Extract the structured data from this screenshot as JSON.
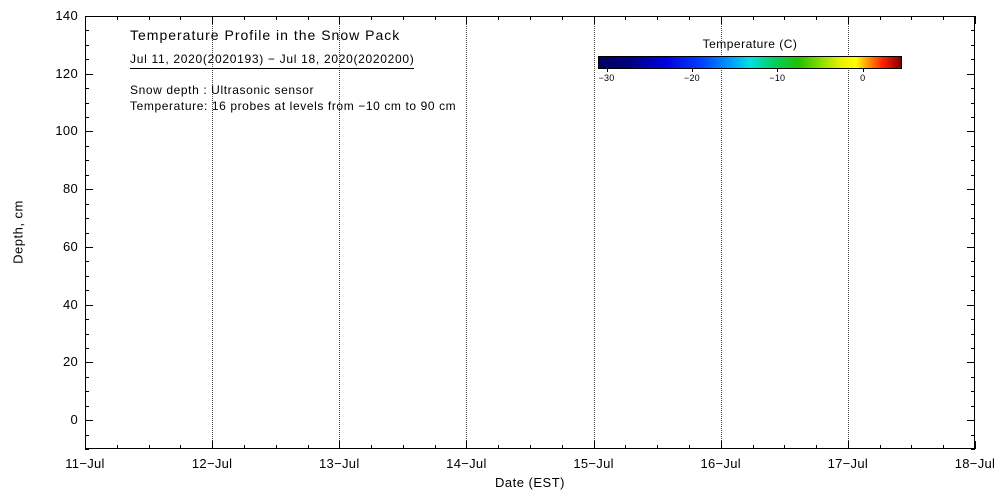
{
  "chart_data": {
    "type": "heatmap",
    "title": "Temperature Profile in the Snow Pack",
    "subtitle": "Jul 11, 2020(2020193) − Jul 18, 2020(2020200)",
    "annotations": [
      "Snow depth : Ultrasonic sensor",
      "Temperature: 16 probes at levels from −10 cm to 90 cm"
    ],
    "xlabel": "Date (EST)",
    "ylabel": "Depth, cm",
    "x_tick_labels": [
      "11−Jul",
      "12−Jul",
      "13−Jul",
      "14−Jul",
      "15−Jul",
      "16−Jul",
      "17−Jul",
      "18−Jul"
    ],
    "x_minor_per_day": 3,
    "y_tick_values": [
      0,
      20,
      40,
      60,
      80,
      100,
      120,
      140
    ],
    "y_minor_step": 5,
    "ylim": [
      -10,
      140
    ],
    "grid": "vertical-dotted",
    "values": [],
    "colorbar": {
      "label": "Temperature (C)",
      "tick_values": [
        -30,
        -20,
        -10,
        0
      ],
      "range": [
        -31,
        4.6
      ],
      "gradient_stops": [
        {
          "pos": 0.0,
          "color": "#000060"
        },
        {
          "pos": 0.1,
          "color": "#000080"
        },
        {
          "pos": 0.22,
          "color": "#0000E0"
        },
        {
          "pos": 0.34,
          "color": "#0040FF"
        },
        {
          "pos": 0.44,
          "color": "#00A0FF"
        },
        {
          "pos": 0.5,
          "color": "#00E0E0"
        },
        {
          "pos": 0.58,
          "color": "#00D060"
        },
        {
          "pos": 0.66,
          "color": "#20C000"
        },
        {
          "pos": 0.74,
          "color": "#90E000"
        },
        {
          "pos": 0.8,
          "color": "#E8F000"
        },
        {
          "pos": 0.85,
          "color": "#FFFF00"
        },
        {
          "pos": 0.9,
          "color": "#FF8000"
        },
        {
          "pos": 0.94,
          "color": "#FF2000"
        },
        {
          "pos": 1.0,
          "color": "#800000"
        }
      ]
    }
  }
}
